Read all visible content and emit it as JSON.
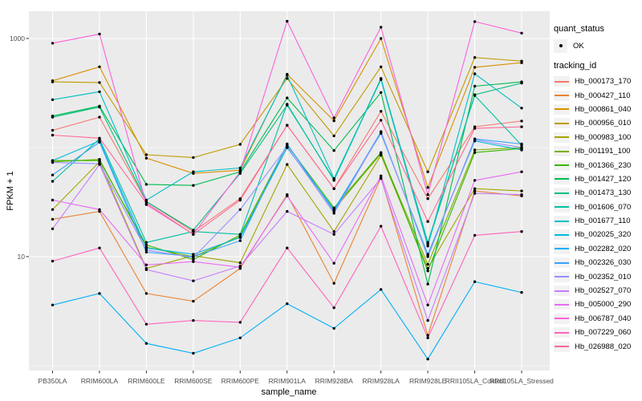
{
  "chart_data": {
    "type": "line",
    "title": "",
    "xlabel": "sample_name",
    "ylabel": "FPKM + 1",
    "y_scale": "log10",
    "ylim": [
      0.9,
      1800
    ],
    "grid": true,
    "panel_bg": "#EBEBEB",
    "grid_color": "#FFFFFF",
    "point_color": "#000000",
    "tick_color": "#333333",
    "tick_label_color": "#4D4D4D",
    "y_ticks": [
      {
        "label": "1000",
        "value": 1000
      },
      {
        "label": "10",
        "value": 10
      }
    ],
    "y_minor_breaks": [
      100,
      1
    ],
    "categories": [
      "PB350LA",
      "RRIM600LA",
      "RRIM600LE",
      "RRIM600SE",
      "RRIM600PE",
      "RRIM901LA",
      "RRIM928BA",
      "RRIM928LA",
      "RRIM928LE",
      "RRII105LA_Control",
      "RRII105LA_Stressed"
    ],
    "legend": {
      "quant_status_title": "quant_status",
      "ok_label": "OK",
      "tracking_title": "tracking_id",
      "legend_position": "right"
    },
    "series": [
      {
        "name": "Hb_000173_170",
        "color": "#F8766D",
        "values": [
          144,
          190,
          32,
          17,
          34,
          160,
          42,
          215,
          34,
          155,
          175
        ]
      },
      {
        "name": "Hb_000427_110",
        "color": "#EA8331",
        "values": [
          22,
          26,
          4.6,
          3.9,
          7.8,
          37,
          5.7,
          53,
          1.9,
          40,
          36
        ]
      },
      {
        "name": "Hb_000861_040",
        "color": "#D89000",
        "values": [
          410,
          550,
          80,
          58,
          62,
          470,
          176,
          1000,
          43,
          545,
          600
        ]
      },
      {
        "name": "Hb_000956_010",
        "color": "#C09B00",
        "values": [
          400,
          395,
          86,
          81,
          107,
          430,
          128,
          550,
          60,
          670,
          620
        ]
      },
      {
        "name": "Hb_000983_100",
        "color": "#A3A500",
        "values": [
          27,
          74,
          7.8,
          10.2,
          8.8,
          70,
          17,
          85,
          7.8,
          42,
          40
        ]
      },
      {
        "name": "Hb_001191_100",
        "color": "#7CAE00",
        "values": [
          74,
          78,
          12.2,
          10,
          15.2,
          100,
          27,
          88,
          8.5,
          95,
          100
        ]
      },
      {
        "name": "Hb_001366_230",
        "color": "#39B600",
        "values": [
          76,
          76,
          12.8,
          9.4,
          15.8,
          106,
          28,
          90,
          7.4,
          90,
          98
        ]
      },
      {
        "name": "Hb_001427_120",
        "color": "#00BB4E",
        "values": [
          195,
          240,
          46,
          45,
          60,
          285,
          94,
          320,
          5.6,
          365,
          400
        ]
      },
      {
        "name": "Hb_001473_130",
        "color": "#00BF7D",
        "values": [
          190,
          235,
          32,
          17.5,
          58,
          245,
          51,
          430,
          13,
          305,
          390
        ]
      },
      {
        "name": "Hb_001606_070",
        "color": "#00C1A3",
        "values": [
          49,
          120,
          13.5,
          17,
          16,
          250,
          50,
          425,
          13.5,
          300,
          105
        ]
      },
      {
        "name": "Hb_001677_110",
        "color": "#00BFC4",
        "values": [
          275,
          325,
          33,
          60,
          65,
          460,
          52,
          420,
          12.5,
          475,
          230
        ]
      },
      {
        "name": "Hb_002025_320",
        "color": "#00BAE0",
        "values": [
          76,
          115,
          12,
          10.5,
          15,
          100,
          27,
          135,
          10.5,
          115,
          95
        ]
      },
      {
        "name": "Hb_002282_020",
        "color": "#00B0F6",
        "values": [
          3.6,
          4.6,
          1.6,
          1.3,
          1.8,
          3.7,
          2.2,
          5,
          1.15,
          5.9,
          4.7
        ]
      },
      {
        "name": "Hb_002326_030",
        "color": "#35A2FF",
        "values": [
          56,
          112,
          11,
          10,
          14,
          108,
          26,
          140,
          10,
          120,
          108
        ]
      },
      {
        "name": "Hb_002352_010",
        "color": "#9590FF",
        "values": [
          73,
          71,
          11.5,
          9.8,
          27,
          102,
          25,
          138,
          10.2,
          118,
          100
        ]
      },
      {
        "name": "Hb_002527_070",
        "color": "#C77CFF",
        "values": [
          18,
          70,
          7.6,
          6,
          8.2,
          26,
          16,
          52,
          2.6,
          38,
          37
        ]
      },
      {
        "name": "Hb_005000_290",
        "color": "#E76BF3",
        "values": [
          33,
          27,
          8.4,
          9,
          8,
          36,
          8.7,
          55,
          3.6,
          50,
          60
        ]
      },
      {
        "name": "Hb_006787_040",
        "color": "#FA62DB",
        "values": [
          905,
          1100,
          30,
          16,
          60,
          1440,
          187,
          1270,
          37,
          1430,
          1120
        ]
      },
      {
        "name": "Hb_007229_060",
        "color": "#FF62BC",
        "values": [
          9.1,
          12,
          2.4,
          2.6,
          2.5,
          12,
          3.4,
          19,
          1.8,
          15.7,
          17
        ]
      },
      {
        "name": "Hb_026988_020",
        "color": "#FF6A98",
        "values": [
          130,
          122,
          31,
          16,
          33,
          160,
          42,
          178,
          21,
          150,
          155
        ]
      }
    ]
  }
}
